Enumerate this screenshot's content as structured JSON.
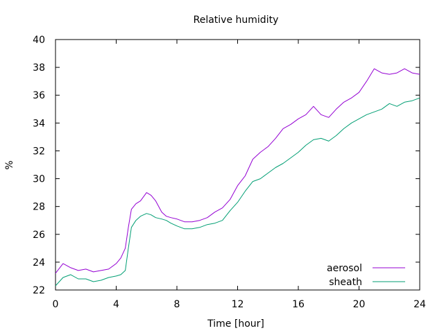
{
  "chart_data": {
    "type": "line",
    "title": "Relative humidity",
    "xlabel": "Time [hour]",
    "ylabel": "%",
    "xlim": [
      0,
      24
    ],
    "ylim": [
      22,
      40
    ],
    "xticks": [
      0,
      4,
      8,
      12,
      16,
      20,
      24
    ],
    "yticks": [
      22,
      24,
      26,
      28,
      30,
      32,
      34,
      36,
      38,
      40
    ],
    "grid": false,
    "legend_position": "bottom-right",
    "series": [
      {
        "name": "aerosol",
        "color": "#9400d3",
        "x": [
          0,
          0.5,
          1,
          1.5,
          2,
          2.5,
          3,
          3.5,
          4,
          4.3,
          4.6,
          4.8,
          5,
          5.3,
          5.6,
          6,
          6.3,
          6.6,
          7,
          7.3,
          7.6,
          8,
          8.5,
          9,
          9.5,
          10,
          10.5,
          11,
          11.5,
          12,
          12.5,
          13,
          13.5,
          14,
          14.5,
          15,
          15.5,
          16,
          16.5,
          17,
          17.5,
          18,
          18.5,
          19,
          19.5,
          20,
          20.5,
          21,
          21.5,
          22,
          22.5,
          23,
          23.5,
          24
        ],
        "y": [
          23.2,
          23.9,
          23.6,
          23.4,
          23.5,
          23.3,
          23.4,
          23.5,
          23.9,
          24.3,
          25.0,
          26.5,
          27.8,
          28.2,
          28.4,
          29.0,
          28.8,
          28.4,
          27.6,
          27.3,
          27.2,
          27.1,
          26.9,
          26.9,
          27.0,
          27.2,
          27.6,
          27.9,
          28.5,
          29.5,
          30.2,
          31.4,
          31.9,
          32.3,
          32.9,
          33.6,
          33.9,
          34.3,
          34.6,
          35.2,
          34.6,
          34.4,
          35.0,
          35.5,
          35.8,
          36.2,
          37.0,
          37.9,
          37.6,
          37.5,
          37.6,
          37.9,
          37.6,
          37.5
        ]
      },
      {
        "name": "sheath",
        "color": "#009e73",
        "x": [
          0,
          0.5,
          1,
          1.5,
          2,
          2.5,
          3,
          3.5,
          4,
          4.3,
          4.6,
          4.8,
          5,
          5.3,
          5.6,
          6,
          6.3,
          6.6,
          7,
          7.3,
          7.6,
          8,
          8.5,
          9,
          9.5,
          10,
          10.5,
          11,
          11.5,
          12,
          12.5,
          13,
          13.5,
          14,
          14.5,
          15,
          15.5,
          16,
          16.5,
          17,
          17.5,
          18,
          18.5,
          19,
          19.5,
          20,
          20.5,
          21,
          21.5,
          22,
          22.5,
          23,
          23.5,
          24
        ],
        "y": [
          22.3,
          22.9,
          23.1,
          22.8,
          22.8,
          22.6,
          22.7,
          22.9,
          23.0,
          23.1,
          23.4,
          25.0,
          26.5,
          27.0,
          27.3,
          27.5,
          27.4,
          27.2,
          27.1,
          27.0,
          26.8,
          26.6,
          26.4,
          26.4,
          26.5,
          26.7,
          26.8,
          27.0,
          27.7,
          28.3,
          29.1,
          29.8,
          30.0,
          30.4,
          30.8,
          31.1,
          31.5,
          31.9,
          32.4,
          32.8,
          32.9,
          32.7,
          33.1,
          33.6,
          34.0,
          34.3,
          34.6,
          34.8,
          35.0,
          35.4,
          35.2,
          35.5,
          35.6,
          35.8
        ]
      }
    ]
  }
}
